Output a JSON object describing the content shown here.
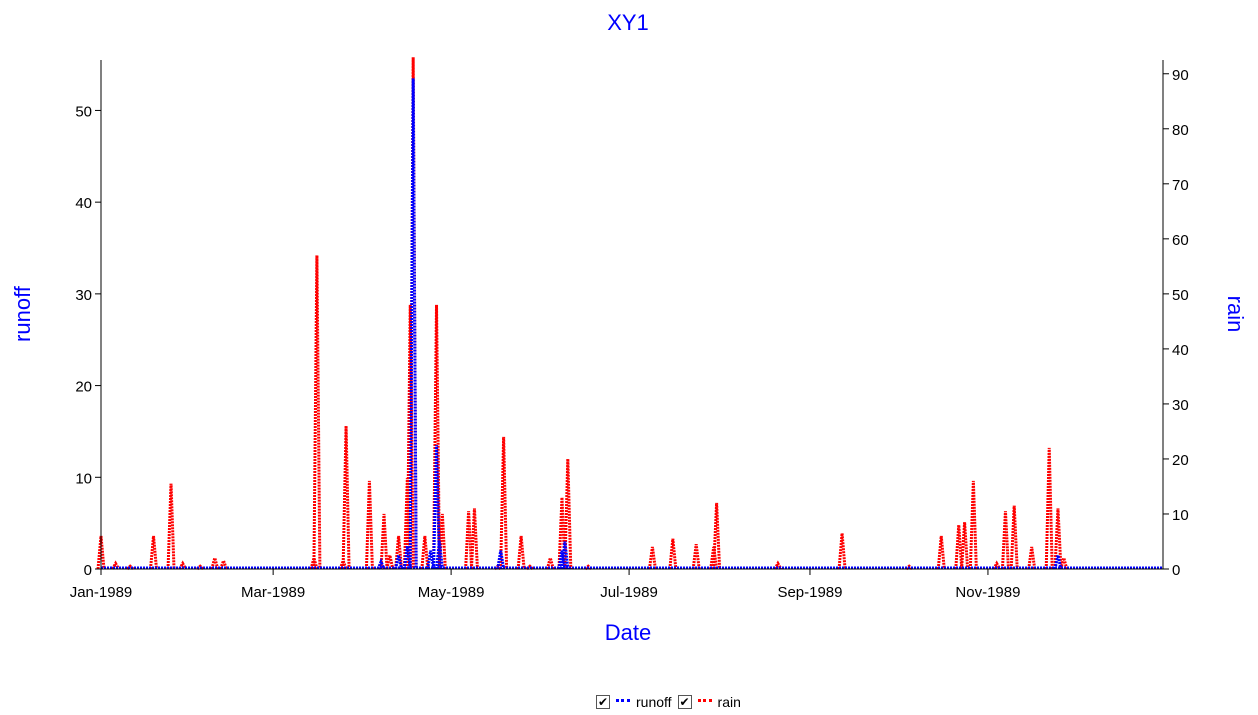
{
  "chart_data": {
    "type": "line",
    "title": "XY1",
    "xlabel": "Date",
    "ylabel_left": "runoff",
    "ylabel_right": "rain",
    "colors": {
      "title": "#0000ff",
      "axis_title": "#0000ff",
      "runoff": "#0000ff",
      "rain": "#ff0000"
    },
    "x_range": [
      "1989-01-01",
      "1989-12-31"
    ],
    "x_ticks": [
      {
        "date": "1989-01-01",
        "label": "Jan-1989"
      },
      {
        "date": "1989-03-01",
        "label": "Mar-1989"
      },
      {
        "date": "1989-05-01",
        "label": "May-1989"
      },
      {
        "date": "1989-07-01",
        "label": "Jul-1989"
      },
      {
        "date": "1989-09-01",
        "label": "Sep-1989"
      },
      {
        "date": "1989-11-01",
        "label": "Nov-1989"
      }
    ],
    "y_left": {
      "min": 0,
      "max": 55.5,
      "ticks": [
        0,
        10,
        20,
        30,
        40,
        50
      ]
    },
    "y_right": {
      "min": 0,
      "max": 92.5,
      "ticks": [
        0,
        10,
        20,
        30,
        40,
        50,
        60,
        70,
        80,
        90
      ]
    },
    "grid": false,
    "legend_position": "bottom",
    "series": [
      {
        "name": "runoff",
        "axis": "left",
        "points": [
          [
            "1989-04-07",
            0.8
          ],
          [
            "1989-04-13",
            1.5
          ],
          [
            "1989-04-16",
            2.5
          ],
          [
            "1989-04-18",
            53.5
          ],
          [
            "1989-04-24",
            2.0
          ],
          [
            "1989-04-26",
            13.5
          ],
          [
            "1989-04-27",
            3.0
          ],
          [
            "1989-05-18",
            2.0
          ],
          [
            "1989-06-08",
            2.0
          ],
          [
            "1989-06-09",
            3.0
          ],
          [
            "1989-11-25",
            1.5
          ]
        ]
      },
      {
        "name": "rain",
        "axis": "right",
        "points": [
          [
            "1989-01-01",
            6.0
          ],
          [
            "1989-01-06",
            1.0
          ],
          [
            "1989-01-11",
            0.5
          ],
          [
            "1989-01-19",
            6.0
          ],
          [
            "1989-01-25",
            15.5
          ],
          [
            "1989-01-29",
            1.0
          ],
          [
            "1989-02-04",
            0.5
          ],
          [
            "1989-02-09",
            2.0
          ],
          [
            "1989-02-12",
            1.5
          ],
          [
            "1989-03-15",
            2.0
          ],
          [
            "1989-03-16",
            57.0
          ],
          [
            "1989-03-25",
            1.5
          ],
          [
            "1989-03-26",
            26.0
          ],
          [
            "1989-04-03",
            16.0
          ],
          [
            "1989-04-07",
            1.0
          ],
          [
            "1989-04-08",
            10.0
          ],
          [
            "1989-04-10",
            2.5
          ],
          [
            "1989-04-13",
            6.0
          ],
          [
            "1989-04-16",
            16.5
          ],
          [
            "1989-04-17",
            48.0
          ],
          [
            "1989-04-18",
            93.0
          ],
          [
            "1989-04-22",
            6.0
          ],
          [
            "1989-04-26",
            48.0
          ],
          [
            "1989-04-28",
            10.0
          ],
          [
            "1989-05-07",
            10.5
          ],
          [
            "1989-05-09",
            11.0
          ],
          [
            "1989-05-17",
            0.5
          ],
          [
            "1989-05-19",
            24.0
          ],
          [
            "1989-05-25",
            6.0
          ],
          [
            "1989-05-28",
            0.5
          ],
          [
            "1989-06-04",
            2.0
          ],
          [
            "1989-06-08",
            13.0
          ],
          [
            "1989-06-10",
            20.0
          ],
          [
            "1989-06-17",
            0.5
          ],
          [
            "1989-07-09",
            4.0
          ],
          [
            "1989-07-16",
            5.5
          ],
          [
            "1989-07-24",
            4.5
          ],
          [
            "1989-07-30",
            4.0
          ],
          [
            "1989-07-31",
            12.0
          ],
          [
            "1989-08-21",
            1.0
          ],
          [
            "1989-09-12",
            6.5
          ],
          [
            "1989-10-05",
            0.5
          ],
          [
            "1989-10-16",
            6.0
          ],
          [
            "1989-10-22",
            8.0
          ],
          [
            "1989-10-24",
            8.5
          ],
          [
            "1989-10-27",
            16.0
          ],
          [
            "1989-11-04",
            1.0
          ],
          [
            "1989-11-07",
            10.5
          ],
          [
            "1989-11-10",
            11.5
          ],
          [
            "1989-11-16",
            4.0
          ],
          [
            "1989-11-22",
            22.0
          ],
          [
            "1989-11-25",
            11.0
          ],
          [
            "1989-11-27",
            2.0
          ]
        ]
      }
    ]
  },
  "legend": {
    "items": [
      {
        "label": "runoff",
        "checked": true,
        "check_glyph": "✔"
      },
      {
        "label": "rain",
        "checked": true,
        "check_glyph": "✔"
      }
    ]
  }
}
